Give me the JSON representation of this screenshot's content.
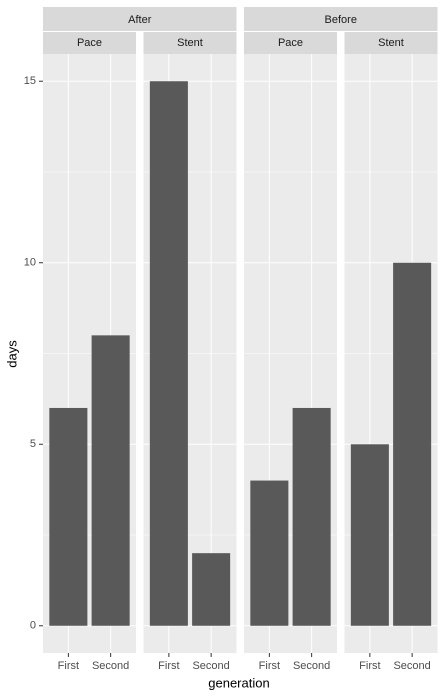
{
  "chart_data": {
    "type": "bar",
    "x_label": "generation",
    "y_label": "days",
    "ylim": [
      -0.75,
      15.75
    ],
    "yticks": [
      0,
      5,
      10,
      15
    ],
    "y_minor_ticks": [
      2.5,
      7.5,
      12.5
    ],
    "grid": true,
    "color": "#595959",
    "facets": [
      {
        "label": "After",
        "panels": [
          {
            "label": "Pace",
            "categories": [
              "First",
              "Second"
            ],
            "values": [
              6,
              8
            ]
          },
          {
            "label": "Stent",
            "categories": [
              "First",
              "Second"
            ],
            "values": [
              15,
              2
            ]
          }
        ]
      },
      {
        "label": "Before",
        "panels": [
          {
            "label": "Pace",
            "categories": [
              "First",
              "Second"
            ],
            "values": [
              4,
              6
            ]
          },
          {
            "label": "Stent",
            "categories": [
              "First",
              "Second"
            ],
            "values": [
              5,
              10
            ]
          }
        ]
      }
    ]
  }
}
